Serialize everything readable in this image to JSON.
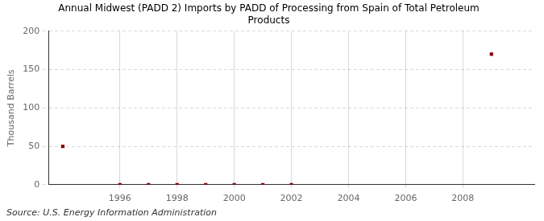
{
  "chart_data": {
    "type": "scatter",
    "title": "Annual Midwest (PADD 2) Imports by PADD of Processing from Spain of Total Petroleum\nProducts",
    "y_label": "Thousand Barrels",
    "annotations": [
      "Source: U.S. Energy Information Administration"
    ],
    "x": [
      1994,
      1996,
      1997,
      1998,
      1999,
      2000,
      2001,
      2002,
      2009
    ],
    "values": [
      50,
      0,
      0,
      0,
      0,
      0,
      0,
      0,
      170
    ],
    "color": "#8b0000",
    "marker": "square",
    "xlim": [
      1993.5,
      2010.5
    ],
    "xticks": [
      1996,
      1998,
      2000,
      2002,
      2004,
      2006,
      2008
    ],
    "ylim": [
      0,
      200
    ],
    "yticks": [
      0,
      50,
      100,
      150,
      200
    ],
    "grid": true
  }
}
